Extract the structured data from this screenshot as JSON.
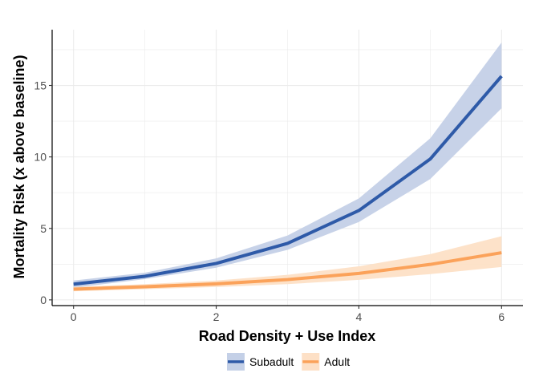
{
  "chart_data": {
    "type": "line",
    "title": "",
    "xlabel": "Road Density + Use Index",
    "ylabel": "Mortality Risk (x above baseline)",
    "x": [
      0,
      1,
      2,
      3,
      4,
      5,
      6
    ],
    "xlim": [
      -0.3,
      6.3
    ],
    "ylim": [
      -0.4,
      18.9
    ],
    "xticks": [
      0,
      2,
      4,
      6
    ],
    "yticks": [
      0,
      5,
      10,
      15
    ],
    "grid": true,
    "legend_position": "bottom",
    "series": [
      {
        "name": "Subadult",
        "color": "#2e5aa8",
        "band_color": "#c4d0e7",
        "values": [
          1.1,
          1.65,
          2.55,
          3.95,
          6.25,
          9.85,
          15.65
        ],
        "lower": [
          0.85,
          1.45,
          2.25,
          3.5,
          5.45,
          8.45,
          13.4
        ],
        "upper": [
          1.35,
          1.9,
          2.9,
          4.5,
          7.1,
          11.3,
          18.0
        ]
      },
      {
        "name": "Adult",
        "color": "#fba25a",
        "band_color": "#fde0c6",
        "values": [
          0.75,
          0.92,
          1.12,
          1.42,
          1.85,
          2.48,
          3.3
        ],
        "lower": [
          0.6,
          0.75,
          0.9,
          1.1,
          1.4,
          1.8,
          2.3
        ],
        "upper": [
          0.9,
          1.1,
          1.35,
          1.75,
          2.35,
          3.2,
          4.45
        ]
      }
    ]
  }
}
